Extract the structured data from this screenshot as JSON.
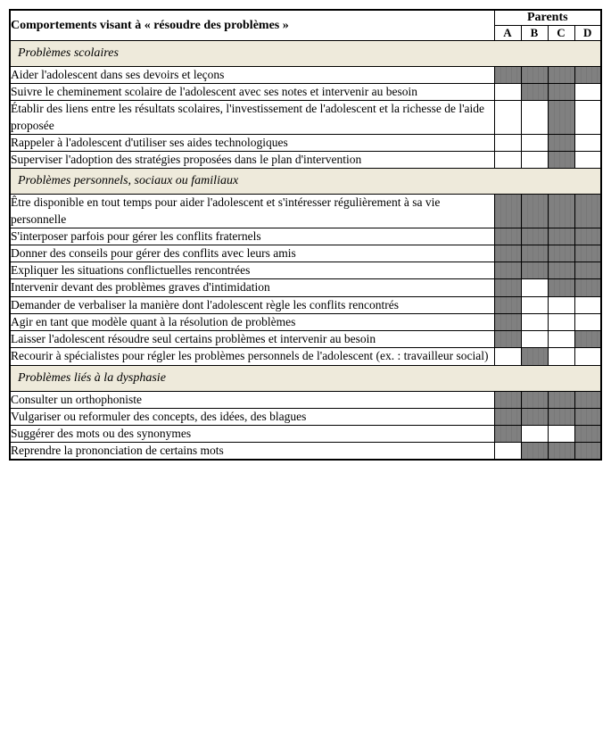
{
  "header": {
    "main": "Comportements visant à « résoudre des problèmes »",
    "group": "Parents",
    "cols": [
      "A",
      "B",
      "C",
      "D"
    ]
  },
  "sections": [
    {
      "title": "Problèmes scolaires",
      "rows": [
        {
          "label": "Aider l'adolescent dans ses devoirs et leçons",
          "marks": [
            1,
            1,
            1,
            1
          ]
        },
        {
          "label": "Suivre le cheminement scolaire de l'adolescent avec ses notes et intervenir au besoin",
          "marks": [
            0,
            1,
            1,
            0
          ]
        },
        {
          "label": "Établir des liens entre les résultats scolaires, l'investissement de l'adolescent et la richesse de l'aide proposée",
          "marks": [
            0,
            0,
            1,
            0
          ]
        },
        {
          "label": "Rappeler à l'adolescent d'utiliser ses aides technologiques",
          "marks": [
            0,
            0,
            1,
            0
          ]
        },
        {
          "label": "Superviser l'adoption des stratégies proposées dans le plan d'intervention",
          "marks": [
            0,
            0,
            1,
            0
          ]
        }
      ]
    },
    {
      "title": "Problèmes personnels, sociaux ou familiaux",
      "rows": [
        {
          "label": "Être disponible en tout temps pour aider l'adolescent et s'intéresser régulièrement à sa vie personnelle",
          "marks": [
            1,
            1,
            1,
            1
          ]
        },
        {
          "label": "S'interposer parfois pour gérer les conflits fraternels",
          "marks": [
            1,
            1,
            1,
            1
          ]
        },
        {
          "label": "Donner des conseils pour gérer des conflits avec leurs amis",
          "marks": [
            1,
            1,
            1,
            1
          ]
        },
        {
          "label": "Expliquer les situations conflictuelles rencontrées",
          "marks": [
            1,
            1,
            1,
            1
          ]
        },
        {
          "label": "Intervenir devant des problèmes graves d'intimidation",
          "marks": [
            1,
            0,
            1,
            1
          ]
        },
        {
          "label": "Demander de verbaliser la manière dont l'adolescent règle les conflits rencontrés",
          "marks": [
            1,
            0,
            0,
            0
          ]
        },
        {
          "label": "Agir en tant que modèle quant à la résolution de problèmes",
          "marks": [
            1,
            0,
            0,
            0
          ]
        },
        {
          "label": "Laisser l'adolescent résoudre seul certains problèmes et intervenir au besoin",
          "marks": [
            1,
            0,
            0,
            1
          ]
        },
        {
          "label": "Recourir à spécialistes pour régler les problèmes personnels de l'adolescent (ex. : travailleur social)",
          "marks": [
            0,
            1,
            0,
            0
          ]
        }
      ]
    },
    {
      "title": "Problèmes liés à la dysphasie",
      "rows": [
        {
          "label": "Consulter un orthophoniste",
          "marks": [
            1,
            1,
            1,
            1
          ]
        },
        {
          "label": "Vulgariser ou reformuler des concepts, des idées, des blagues",
          "marks": [
            1,
            1,
            1,
            1
          ]
        },
        {
          "label": "Suggérer des mots ou des synonymes",
          "marks": [
            1,
            0,
            0,
            1
          ]
        },
        {
          "label": "Reprendre la prononciation de certains mots",
          "marks": [
            0,
            1,
            1,
            1
          ]
        }
      ]
    }
  ],
  "style": {
    "section_bg": "#eeeadb",
    "fill_color": "#808080",
    "border_color": "#000000",
    "bg_color": "#ffffff"
  }
}
